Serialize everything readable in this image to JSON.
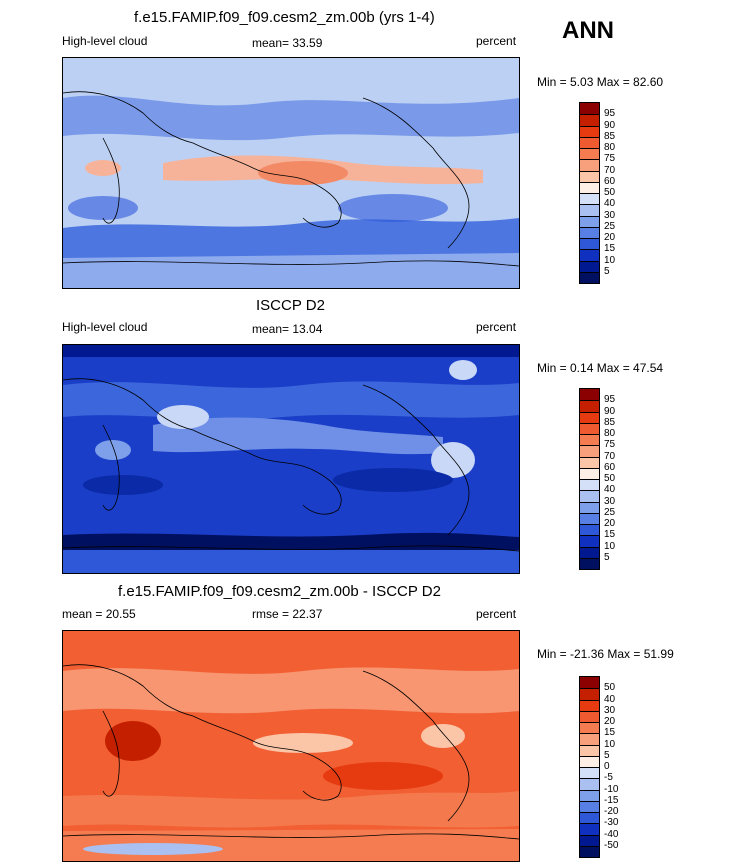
{
  "season": "ANN",
  "units_label": "percent",
  "chart_data": [
    {
      "type": "heatmap",
      "title": "f.e15.FAMIP.f09_f09.cesm2_zm.00b (yrs 1-4)",
      "left_label": "High-level cloud",
      "stat_label": "mean=  33.59",
      "units": "percent",
      "minmax": "Min =   5.03 Max =  82.60",
      "mean": 33.59,
      "min": 5.03,
      "max": 82.6,
      "x_range": [
        -180,
        180
      ],
      "y_range": [
        -90,
        90
      ],
      "levels": [
        "95",
        "90",
        "85",
        "80",
        "75",
        "70",
        "60",
        "50",
        "40",
        "30",
        "25",
        "20",
        "15",
        "10",
        "5"
      ],
      "colors": [
        "#8b0000",
        "#c42000",
        "#e63a10",
        "#f05a30",
        "#f47c50",
        "#f8a07c",
        "#fbc6a8",
        "#fdeee6",
        "#d3e0f8",
        "#a9c0f0",
        "#7ea0ea",
        "#5880e4",
        "#2f58d8",
        "#1030c0",
        "#001890",
        "#001060"
      ]
    },
    {
      "type": "heatmap",
      "title": "ISCCP D2",
      "left_label": "High-level cloud",
      "stat_label": "mean=  13.04",
      "units": "percent",
      "minmax": "Min =   0.14 Max =  47.54",
      "mean": 13.04,
      "min": 0.14,
      "max": 47.54,
      "x_range": [
        -180,
        180
      ],
      "y_range": [
        -90,
        90
      ],
      "levels": [
        "95",
        "90",
        "85",
        "80",
        "75",
        "70",
        "60",
        "50",
        "40",
        "30",
        "25",
        "20",
        "15",
        "10",
        "5"
      ],
      "colors": [
        "#8b0000",
        "#c42000",
        "#e63a10",
        "#f05a30",
        "#f47c50",
        "#f8a07c",
        "#fbc6a8",
        "#fdeee6",
        "#d3e0f8",
        "#a9c0f0",
        "#7ea0ea",
        "#5880e4",
        "#2f58d8",
        "#1030c0",
        "#001890",
        "#001060"
      ]
    },
    {
      "type": "heatmap",
      "title": "f.e15.FAMIP.f09_f09.cesm2_zm.00b - ISCCP D2",
      "left_label": "mean =  20.55",
      "stat_label": "rmse =  22.37",
      "units": "percent",
      "minmax": "Min = -21.36 Max =  51.99",
      "mean": 20.55,
      "rmse": 22.37,
      "min": -21.36,
      "max": 51.99,
      "x_range": [
        -180,
        180
      ],
      "y_range": [
        -90,
        90
      ],
      "levels": [
        "50",
        "40",
        "30",
        "20",
        "15",
        "10",
        "5",
        "0",
        "-5",
        "-10",
        "-15",
        "-20",
        "-30",
        "-40",
        "-50"
      ],
      "colors": [
        "#8b0000",
        "#c42000",
        "#e63a10",
        "#f05a30",
        "#f47c50",
        "#f8a07c",
        "#fbc6a8",
        "#fdeee6",
        "#d3e0f8",
        "#a9c0f0",
        "#7ea0ea",
        "#5880e4",
        "#2f58d8",
        "#1030c0",
        "#001890",
        "#001060"
      ]
    }
  ]
}
